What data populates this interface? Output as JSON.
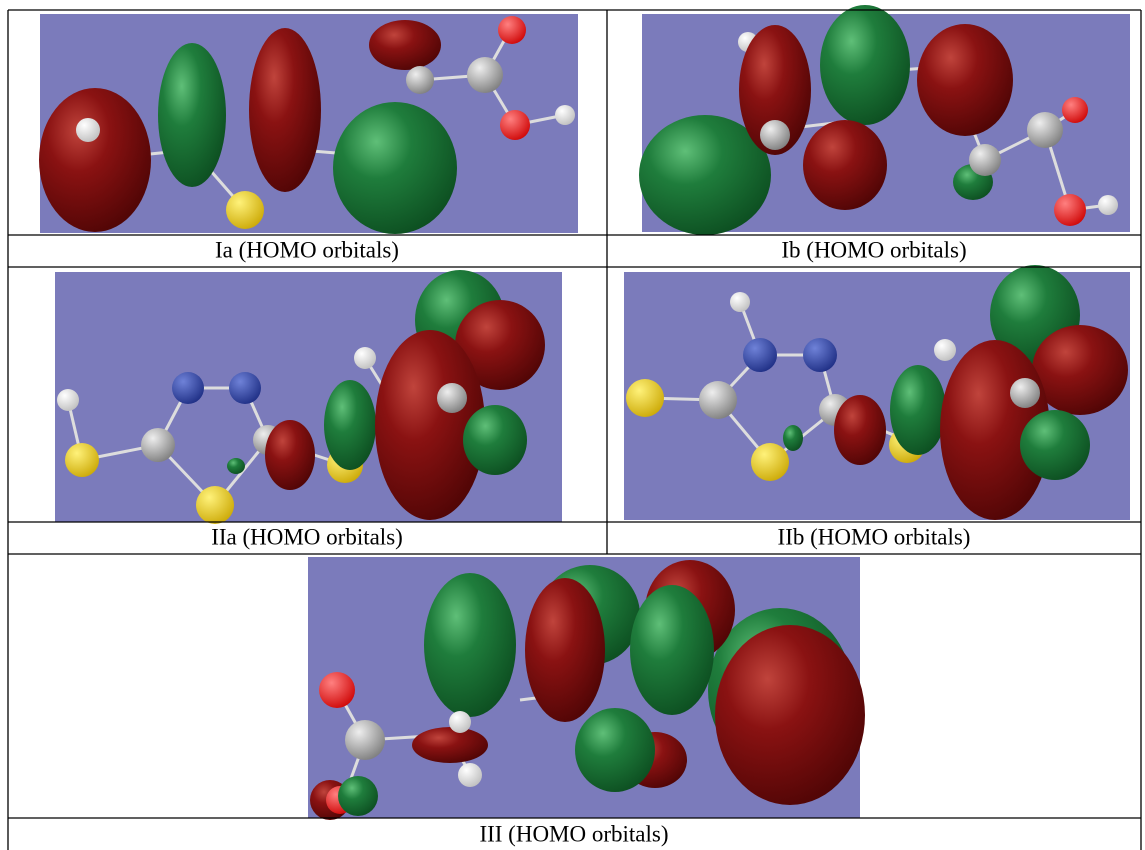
{
  "captions": [
    "Ia (HOMO orbitals)",
    "Ib (HOMO orbitals)",
    "IIa (HOMO orbitals)",
    "IIb (HOMO orbitals)",
    "III (HOMO orbitals)"
  ]
}
